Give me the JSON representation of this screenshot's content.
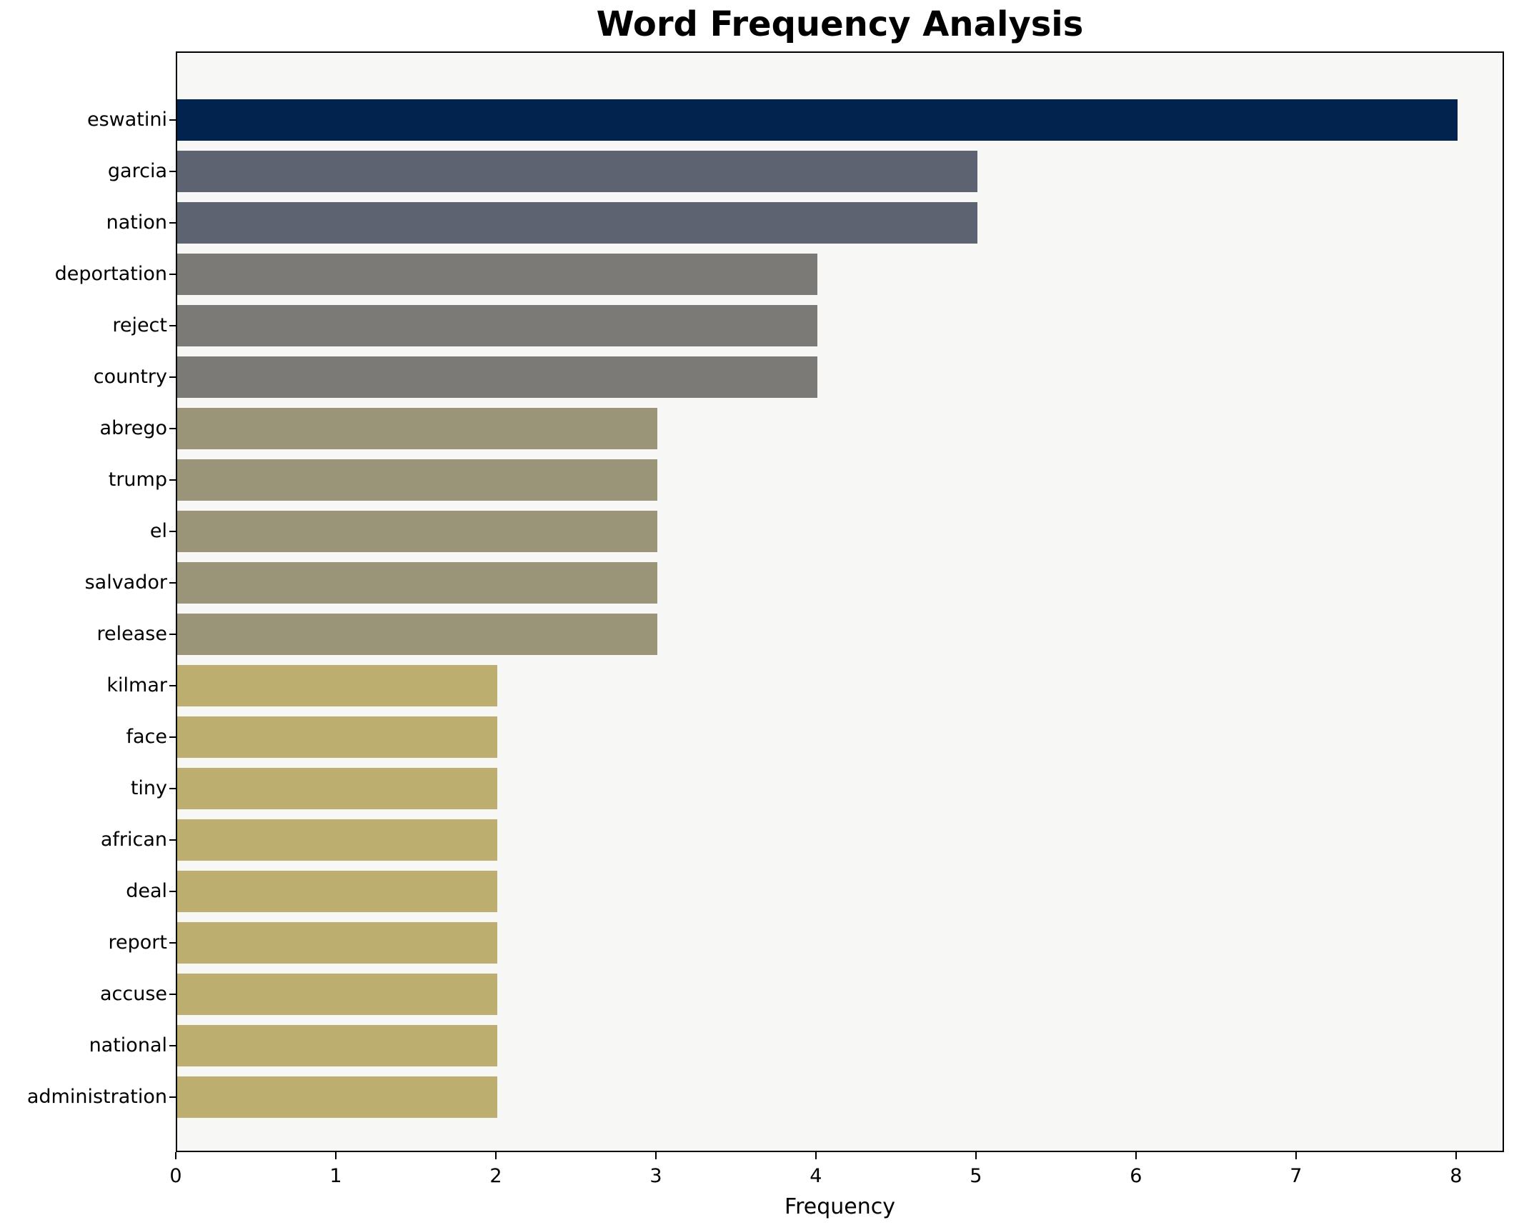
{
  "title": "Word Frequency Analysis",
  "chart_data": {
    "type": "bar",
    "orientation": "horizontal",
    "title": "Word Frequency Analysis",
    "xlabel": "Frequency",
    "ylabel": "",
    "categories": [
      "eswatini",
      "garcia",
      "nation",
      "deportation",
      "reject",
      "country",
      "abrego",
      "trump",
      "el",
      "salvador",
      "release",
      "kilmar",
      "face",
      "tiny",
      "african",
      "deal",
      "report",
      "accuse",
      "national",
      "administration"
    ],
    "values": [
      8,
      5,
      5,
      4,
      4,
      4,
      3,
      3,
      3,
      3,
      3,
      2,
      2,
      2,
      2,
      2,
      2,
      2,
      2,
      2
    ],
    "bar_colors": [
      "#02234e",
      "#5d6370",
      "#5d6370",
      "#7b7a76",
      "#7b7a76",
      "#7b7a76",
      "#9a9478",
      "#9a9478",
      "#9a9478",
      "#9a9478",
      "#9a9478",
      "#bbae6e",
      "#bbae6e",
      "#bbae6e",
      "#bbae6e",
      "#bbae6e",
      "#bbae6e",
      "#bbae6e",
      "#bbae6e",
      "#bbae6e"
    ],
    "xticks": [
      0,
      1,
      2,
      3,
      4,
      5,
      6,
      7,
      8
    ],
    "xlim": [
      0,
      8.3
    ],
    "grid": false,
    "legend": "none",
    "plot_background": "#f7f7f6",
    "figure_background": "#ffffff",
    "spine_color": "#000000",
    "accent_color_max": "#02234e",
    "accent_color_min": "#bbae6e"
  }
}
